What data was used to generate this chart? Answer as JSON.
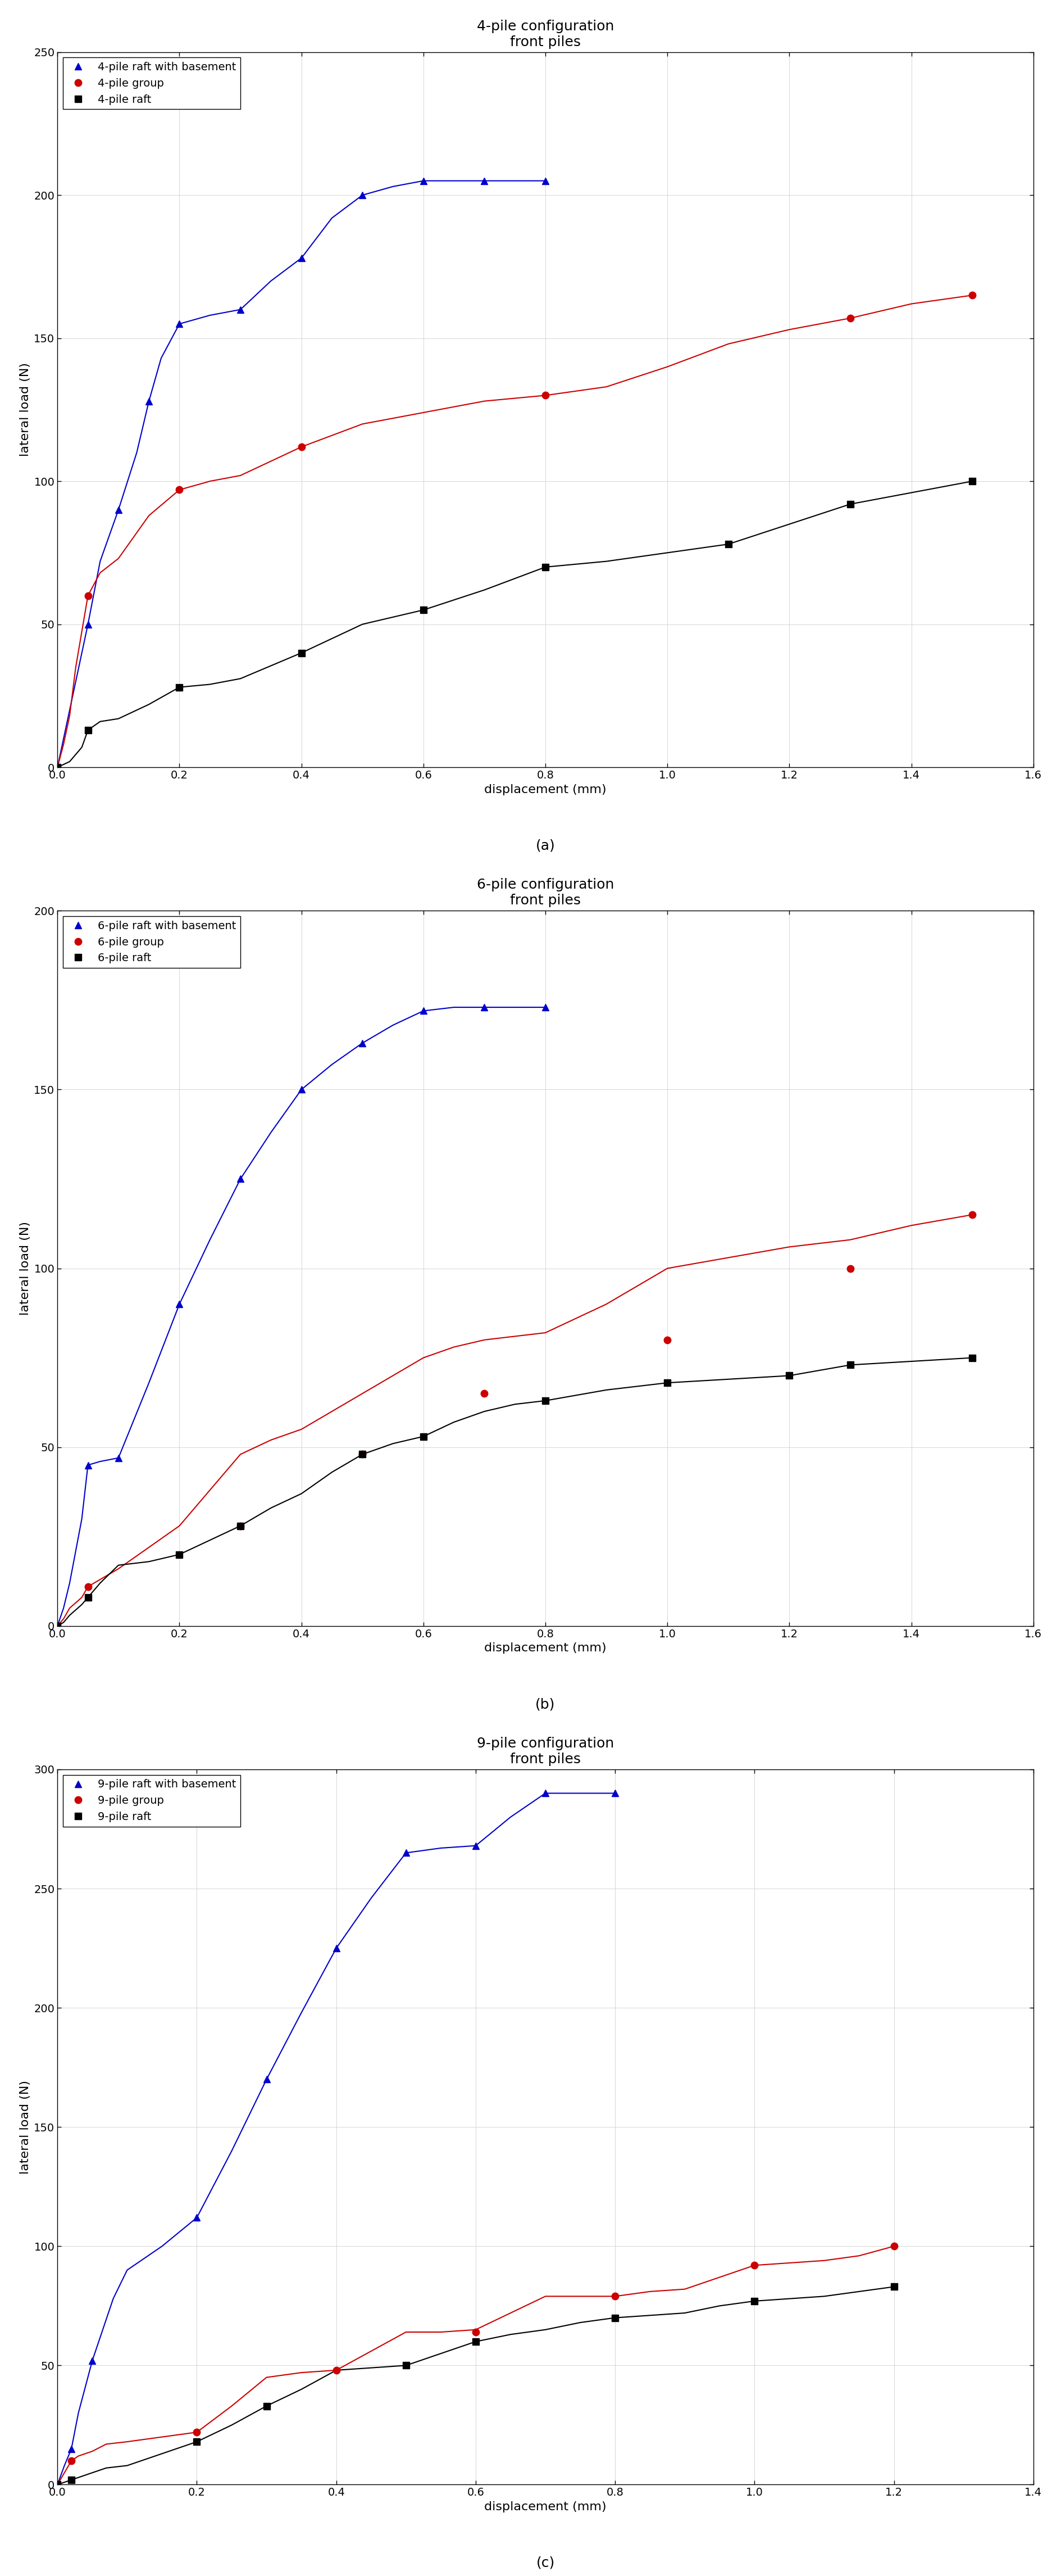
{
  "charts": [
    {
      "title": "4-pile configuration\nfront piles",
      "label": "(a)",
      "ylabel": "lateral load (N)",
      "xlabel": "displacement (mm)",
      "ylim": [
        0,
        250
      ],
      "xlim": [
        0,
        1.6
      ],
      "yticks": [
        0,
        50,
        100,
        150,
        200,
        250
      ],
      "xticks": [
        0.0,
        0.2,
        0.4,
        0.6,
        0.8,
        1.0,
        1.2,
        1.4,
        1.6
      ],
      "series": [
        {
          "label": "4-pile raft with basement",
          "color": "#0000cc",
          "marker": "^",
          "marker_x": [
            0.0,
            0.05,
            0.1,
            0.15,
            0.2,
            0.3,
            0.4,
            0.5,
            0.6,
            0.7,
            0.8
          ],
          "marker_y": [
            0.0,
            50.0,
            90.0,
            128.0,
            155.0,
            160.0,
            178.0,
            200.0,
            205.0,
            205.0,
            205.0
          ],
          "line_x": [
            0.0,
            0.01,
            0.02,
            0.04,
            0.05,
            0.07,
            0.1,
            0.13,
            0.15,
            0.17,
            0.2,
            0.25,
            0.3,
            0.35,
            0.4,
            0.45,
            0.5,
            0.55,
            0.6,
            0.7,
            0.8
          ],
          "line_y": [
            0.0,
            10.0,
            20.0,
            40.0,
            50.0,
            72.0,
            90.0,
            110.0,
            128.0,
            143.0,
            155.0,
            158.0,
            160.0,
            170.0,
            178.0,
            192.0,
            200.0,
            203.0,
            205.0,
            205.0,
            205.0
          ]
        },
        {
          "label": "4-pile group",
          "color": "#cc0000",
          "marker": "o",
          "marker_x": [
            0.0,
            0.05,
            0.2,
            0.4,
            0.8,
            1.3,
            1.5
          ],
          "marker_y": [
            0.0,
            60.0,
            97.0,
            112.0,
            130.0,
            157.0,
            165.0
          ],
          "line_x": [
            0.0,
            0.01,
            0.02,
            0.03,
            0.05,
            0.07,
            0.1,
            0.15,
            0.2,
            0.25,
            0.3,
            0.35,
            0.4,
            0.5,
            0.6,
            0.7,
            0.8,
            0.9,
            1.0,
            1.1,
            1.2,
            1.3,
            1.4,
            1.5
          ],
          "line_y": [
            0.0,
            8.0,
            18.0,
            35.0,
            60.0,
            68.0,
            73.0,
            88.0,
            97.0,
            100.0,
            102.0,
            107.0,
            112.0,
            120.0,
            124.0,
            128.0,
            130.0,
            133.0,
            140.0,
            148.0,
            153.0,
            157.0,
            162.0,
            165.0
          ]
        },
        {
          "label": "4-pile raft",
          "color": "#000000",
          "marker": "s",
          "marker_x": [
            0.0,
            0.05,
            0.2,
            0.4,
            0.6,
            0.8,
            1.1,
            1.3,
            1.5
          ],
          "marker_y": [
            0.0,
            13.0,
            28.0,
            40.0,
            55.0,
            70.0,
            78.0,
            92.0,
            100.0
          ],
          "line_x": [
            0.0,
            0.01,
            0.02,
            0.04,
            0.05,
            0.07,
            0.1,
            0.15,
            0.2,
            0.25,
            0.3,
            0.4,
            0.5,
            0.6,
            0.7,
            0.8,
            0.9,
            1.0,
            1.1,
            1.2,
            1.3,
            1.4,
            1.5
          ],
          "line_y": [
            0.0,
            1.0,
            2.0,
            7.0,
            13.0,
            16.0,
            17.0,
            22.0,
            28.0,
            29.0,
            31.0,
            40.0,
            50.0,
            55.0,
            62.0,
            70.0,
            72.0,
            75.0,
            78.0,
            85.0,
            92.0,
            96.0,
            100.0
          ]
        }
      ]
    },
    {
      "title": "6-pile configuration\nfront piles",
      "label": "(b)",
      "ylabel": "lateral load (N)",
      "xlabel": "displacement (mm)",
      "ylim": [
        0,
        200
      ],
      "xlim": [
        0,
        1.6
      ],
      "yticks": [
        0,
        50,
        100,
        150,
        200
      ],
      "xticks": [
        0.0,
        0.2,
        0.4,
        0.6,
        0.8,
        1.0,
        1.2,
        1.4,
        1.6
      ],
      "series": [
        {
          "label": "6-pile raft with basement",
          "color": "#0000cc",
          "marker": "^",
          "marker_x": [
            0.0,
            0.05,
            0.1,
            0.2,
            0.3,
            0.4,
            0.5,
            0.6,
            0.7,
            0.8
          ],
          "marker_y": [
            0.0,
            45.0,
            47.0,
            90.0,
            125.0,
            150.0,
            163.0,
            172.0,
            173.0,
            173.0
          ],
          "line_x": [
            0.0,
            0.01,
            0.02,
            0.04,
            0.05,
            0.07,
            0.1,
            0.15,
            0.2,
            0.25,
            0.3,
            0.35,
            0.4,
            0.45,
            0.5,
            0.55,
            0.6,
            0.65,
            0.7,
            0.75,
            0.8
          ],
          "line_y": [
            0.0,
            5.0,
            12.0,
            30.0,
            45.0,
            46.0,
            47.0,
            68.0,
            90.0,
            108.0,
            125.0,
            138.0,
            150.0,
            157.0,
            163.0,
            168.0,
            172.0,
            173.0,
            173.0,
            173.0,
            173.0
          ]
        },
        {
          "label": "6-pile group",
          "color": "#cc0000",
          "marker": "o",
          "marker_x": [
            0.0,
            0.05,
            0.3,
            0.5,
            0.7,
            1.0,
            1.3,
            1.5
          ],
          "marker_y": [
            0.0,
            11.0,
            28.0,
            48.0,
            65.0,
            80.0,
            100.0,
            115.0
          ],
          "line_x": [
            0.0,
            0.01,
            0.02,
            0.04,
            0.05,
            0.07,
            0.1,
            0.15,
            0.2,
            0.25,
            0.3,
            0.35,
            0.4,
            0.45,
            0.5,
            0.55,
            0.6,
            0.65,
            0.7,
            0.75,
            0.8,
            0.9,
            1.0,
            1.1,
            1.2,
            1.3,
            1.4,
            1.5
          ],
          "line_y": [
            0.0,
            2.0,
            5.0,
            8.0,
            11.0,
            13.0,
            16.0,
            22.0,
            28.0,
            38.0,
            48.0,
            52.0,
            55.0,
            60.0,
            65.0,
            70.0,
            75.0,
            78.0,
            80.0,
            81.0,
            82.0,
            90.0,
            100.0,
            103.0,
            106.0,
            108.0,
            112.0,
            115.0
          ]
        },
        {
          "label": "6-pile raft",
          "color": "#000000",
          "marker": "s",
          "marker_x": [
            0.0,
            0.05,
            0.2,
            0.3,
            0.5,
            0.6,
            0.8,
            1.0,
            1.2,
            1.3,
            1.5
          ],
          "marker_y": [
            0.0,
            8.0,
            20.0,
            28.0,
            48.0,
            53.0,
            63.0,
            68.0,
            70.0,
            73.0,
            75.0
          ],
          "line_x": [
            0.0,
            0.01,
            0.02,
            0.04,
            0.05,
            0.07,
            0.1,
            0.15,
            0.2,
            0.25,
            0.3,
            0.35,
            0.4,
            0.45,
            0.5,
            0.55,
            0.6,
            0.65,
            0.7,
            0.75,
            0.8,
            0.9,
            1.0,
            1.1,
            1.2,
            1.3,
            1.4,
            1.5
          ],
          "line_y": [
            0.0,
            1.0,
            3.0,
            6.0,
            8.0,
            12.0,
            17.0,
            18.0,
            20.0,
            24.0,
            28.0,
            33.0,
            37.0,
            43.0,
            48.0,
            51.0,
            53.0,
            57.0,
            60.0,
            62.0,
            63.0,
            66.0,
            68.0,
            69.0,
            70.0,
            73.0,
            74.0,
            75.0
          ]
        }
      ]
    },
    {
      "title": "9-pile configuration\nfront piles",
      "label": "(c)",
      "ylabel": "lateral load (N)",
      "xlabel": "displacement (mm)",
      "ylim": [
        0,
        300
      ],
      "xlim": [
        0,
        1.4
      ],
      "yticks": [
        0,
        50,
        100,
        150,
        200,
        250,
        300
      ],
      "xticks": [
        0.0,
        0.2,
        0.4,
        0.6,
        0.8,
        1.0,
        1.2,
        1.4
      ],
      "series": [
        {
          "label": "9-pile raft with basement",
          "color": "#0000cc",
          "marker": "^",
          "marker_x": [
            0.0,
            0.02,
            0.05,
            0.2,
            0.3,
            0.4,
            0.5,
            0.6,
            0.7,
            0.8
          ],
          "marker_y": [
            0.0,
            15.0,
            52.0,
            112.0,
            170.0,
            225.0,
            265.0,
            268.0,
            290.0,
            290.0
          ],
          "line_x": [
            0.0,
            0.01,
            0.02,
            0.03,
            0.05,
            0.08,
            0.1,
            0.15,
            0.2,
            0.25,
            0.3,
            0.35,
            0.4,
            0.45,
            0.5,
            0.55,
            0.6,
            0.65,
            0.7,
            0.75,
            0.8
          ],
          "line_y": [
            0.0,
            8.0,
            15.0,
            30.0,
            52.0,
            78.0,
            90.0,
            100.0,
            112.0,
            140.0,
            170.0,
            198.0,
            225.0,
            246.0,
            265.0,
            267.0,
            268.0,
            280.0,
            290.0,
            290.0,
            290.0
          ]
        },
        {
          "label": "9-pile group",
          "color": "#cc0000",
          "marker": "o",
          "marker_x": [
            0.0,
            0.02,
            0.2,
            0.4,
            0.6,
            0.8,
            1.0,
            1.2
          ],
          "marker_y": [
            0.0,
            10.0,
            22.0,
            48.0,
            64.0,
            79.0,
            92.0,
            100.0
          ],
          "line_x": [
            0.0,
            0.01,
            0.02,
            0.03,
            0.05,
            0.07,
            0.1,
            0.15,
            0.2,
            0.25,
            0.3,
            0.35,
            0.4,
            0.45,
            0.5,
            0.55,
            0.6,
            0.65,
            0.7,
            0.75,
            0.8,
            0.85,
            0.9,
            0.95,
            1.0,
            1.05,
            1.1,
            1.15,
            1.2
          ],
          "line_y": [
            0.0,
            5.0,
            10.0,
            12.0,
            14.0,
            17.0,
            18.0,
            20.0,
            22.0,
            33.0,
            45.0,
            47.0,
            48.0,
            56.0,
            64.0,
            64.0,
            65.0,
            72.0,
            79.0,
            79.0,
            79.0,
            81.0,
            82.0,
            87.0,
            92.0,
            93.0,
            94.0,
            96.0,
            100.0
          ]
        },
        {
          "label": "9-pile raft",
          "color": "#000000",
          "marker": "s",
          "marker_x": [
            0.0,
            0.02,
            0.2,
            0.3,
            0.5,
            0.6,
            0.8,
            1.0,
            1.2
          ],
          "marker_y": [
            0.0,
            2.0,
            18.0,
            33.0,
            50.0,
            60.0,
            70.0,
            77.0,
            83.0
          ],
          "line_x": [
            0.0,
            0.01,
            0.02,
            0.03,
            0.05,
            0.07,
            0.1,
            0.15,
            0.2,
            0.25,
            0.3,
            0.35,
            0.4,
            0.45,
            0.5,
            0.55,
            0.6,
            0.65,
            0.7,
            0.75,
            0.8,
            0.85,
            0.9,
            0.95,
            1.0,
            1.05,
            1.1,
            1.15,
            1.2
          ],
          "line_y": [
            0.0,
            1.0,
            2.0,
            3.0,
            5.0,
            7.0,
            8.0,
            13.0,
            18.0,
            25.0,
            33.0,
            40.0,
            48.0,
            49.0,
            50.0,
            55.0,
            60.0,
            63.0,
            65.0,
            68.0,
            70.0,
            71.0,
            72.0,
            75.0,
            77.0,
            78.0,
            79.0,
            81.0,
            83.0
          ]
        }
      ]
    }
  ],
  "title_fontsize": 18,
  "axis_label_fontsize": 16,
  "tick_fontsize": 14,
  "legend_fontsize": 14,
  "marker_size": 9,
  "linewidth": 1.5,
  "sublabel_fontsize": 18,
  "background_color": "#ffffff",
  "grid_color": "#d0d0d0"
}
